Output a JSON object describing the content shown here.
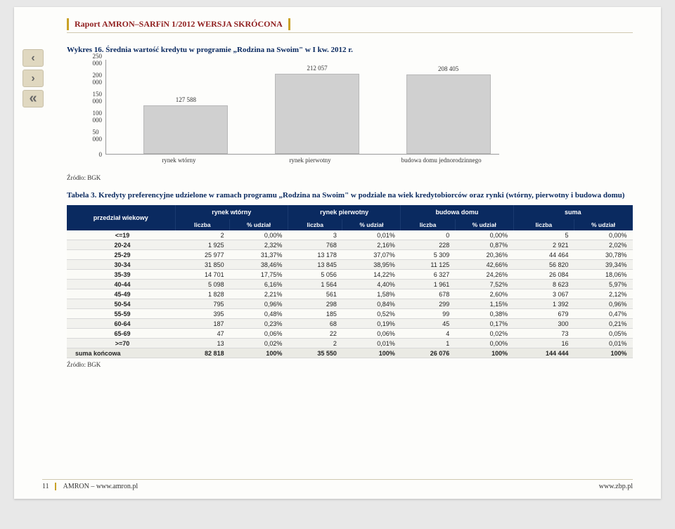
{
  "header": {
    "title": "Raport AMRON–SARFiN 1/2012 WERSJA SKRÓCONA"
  },
  "nav": {
    "prev": "‹",
    "next": "›",
    "back": "«"
  },
  "chart": {
    "title": "Wykres 16. Średnia wartość kredytu w programie „Rodzina na Swoim\" w I kw. 2012 r.",
    "ylim_max": 250000,
    "yticks": [
      "250 000",
      "200 000",
      "150 000",
      "100 000",
      "50 000",
      "0"
    ],
    "categories": [
      "rynek wtórny",
      "rynek pierwotny",
      "budowa domu jednorodzinnego"
    ],
    "values": [
      127588,
      212057,
      208405
    ],
    "labels": [
      "127 588",
      "212 057",
      "208 405"
    ],
    "bar_color": "#d0d0d0",
    "source": "Źródło: BGK"
  },
  "table": {
    "title": "Tabela 3. Kredyty preferencyjne udzielone w ramach programu „Rodzina na Swoim\" w podziale na wiek kredytobiorców oraz rynki (wtórny, pierwotny i budowa domu)",
    "row_header": "przedział wiekowy",
    "groups": [
      "rynek wtórny",
      "rynek pierwotny",
      "budowa domu",
      "suma"
    ],
    "sub": [
      "liczba",
      "% udział"
    ],
    "rows": [
      {
        "k": "<=19",
        "c": [
          "2",
          "0,00%",
          "3",
          "0,01%",
          "0",
          "0,00%",
          "5",
          "0,00%"
        ]
      },
      {
        "k": "20-24",
        "c": [
          "1 925",
          "2,32%",
          "768",
          "2,16%",
          "228",
          "0,87%",
          "2 921",
          "2,02%"
        ]
      },
      {
        "k": "25-29",
        "c": [
          "25 977",
          "31,37%",
          "13 178",
          "37,07%",
          "5 309",
          "20,36%",
          "44 464",
          "30,78%"
        ]
      },
      {
        "k": "30-34",
        "c": [
          "31 850",
          "38,46%",
          "13 845",
          "38,95%",
          "11 125",
          "42,66%",
          "56 820",
          "39,34%"
        ]
      },
      {
        "k": "35-39",
        "c": [
          "14 701",
          "17,75%",
          "5 056",
          "14,22%",
          "6 327",
          "24,26%",
          "26 084",
          "18,06%"
        ]
      },
      {
        "k": "40-44",
        "c": [
          "5 098",
          "6,16%",
          "1 564",
          "4,40%",
          "1 961",
          "7,52%",
          "8 623",
          "5,97%"
        ]
      },
      {
        "k": "45-49",
        "c": [
          "1 828",
          "2,21%",
          "561",
          "1,58%",
          "678",
          "2,60%",
          "3 067",
          "2,12%"
        ]
      },
      {
        "k": "50-54",
        "c": [
          "795",
          "0,96%",
          "298",
          "0,84%",
          "299",
          "1,15%",
          "1 392",
          "0,96%"
        ]
      },
      {
        "k": "55-59",
        "c": [
          "395",
          "0,48%",
          "185",
          "0,52%",
          "99",
          "0,38%",
          "679",
          "0,47%"
        ]
      },
      {
        "k": "60-64",
        "c": [
          "187",
          "0,23%",
          "68",
          "0,19%",
          "45",
          "0,17%",
          "300",
          "0,21%"
        ]
      },
      {
        "k": "65-69",
        "c": [
          "47",
          "0,06%",
          "22",
          "0,06%",
          "4",
          "0,02%",
          "73",
          "0,05%"
        ]
      },
      {
        "k": ">=70",
        "c": [
          "13",
          "0,02%",
          "2",
          "0,01%",
          "1",
          "0,00%",
          "16",
          "0,01%"
        ]
      }
    ],
    "total": {
      "k": "suma końcowa",
      "c": [
        "82 818",
        "100%",
        "35 550",
        "100%",
        "26 076",
        "100%",
        "144 444",
        "100%"
      ]
    },
    "source": "Źródło: BGK"
  },
  "footer": {
    "page": "11",
    "left": "AMRON – www.amron.pl",
    "right": "www.zbp.pl"
  }
}
